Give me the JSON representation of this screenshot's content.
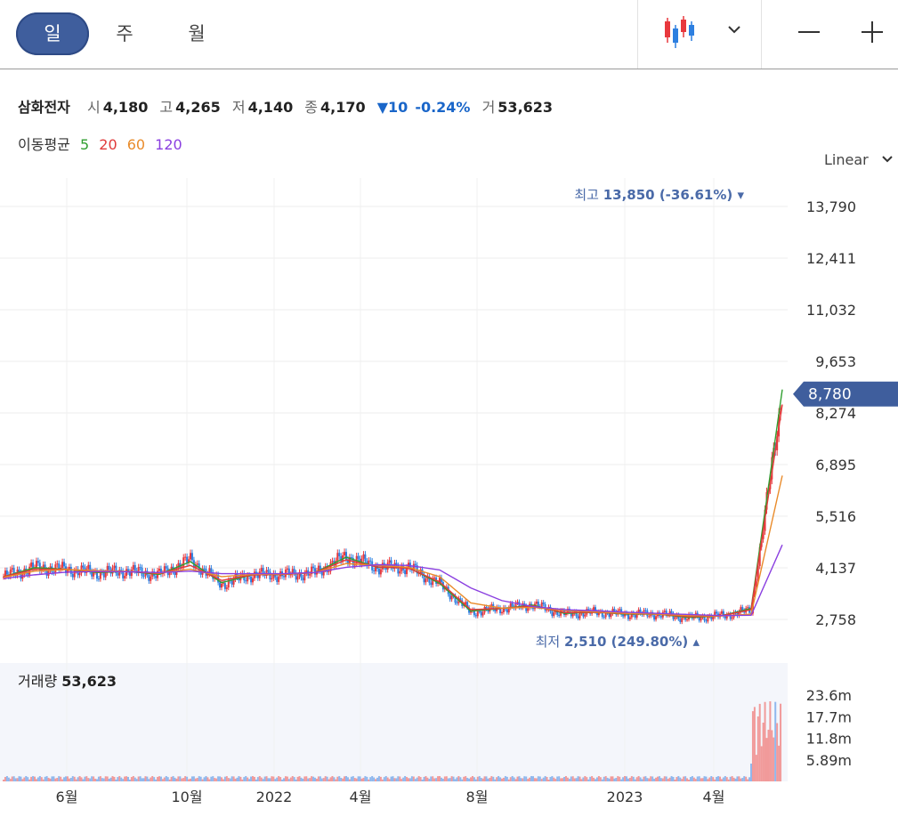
{
  "toolbar": {
    "period_tabs": [
      "일",
      "주",
      "월"
    ],
    "active_period": "일",
    "chart_type_icon": "candlestick-icon",
    "dropdown_icon": "chevron-down-icon",
    "zoom_out_icon": "minus-icon",
    "zoom_in_icon": "plus-icon"
  },
  "quote": {
    "name": "삼화전자",
    "open_label": "시",
    "open": "4,180",
    "high_label": "고",
    "high": "4,265",
    "low_label": "저",
    "low": "4,140",
    "close_label": "종",
    "close": "4,170",
    "change": "▼10",
    "change_pct": "-0.24%",
    "volume_label": "거",
    "volume": "53,623"
  },
  "moving_average": {
    "label": "이동평균",
    "periods": [
      {
        "label": "5",
        "color": "#2f9e2f"
      },
      {
        "label": "20",
        "color": "#e03a3a"
      },
      {
        "label": "60",
        "color": "#e98b2a"
      },
      {
        "label": "120",
        "color": "#8a3fe0"
      }
    ]
  },
  "scale": {
    "label": "Linear"
  },
  "colors": {
    "up": "#e8383d",
    "down": "#2d7fe0",
    "accent": "#3f5e9d",
    "label_text": "#4a6aa8"
  },
  "chart_data": {
    "type": "candlestick",
    "x": [
      "2021-04",
      "2021-05",
      "2021-06",
      "2021-07",
      "2021-08",
      "2021-09",
      "2021-10",
      "2021-11",
      "2021-12",
      "2022-01",
      "2022-02",
      "2022-03",
      "2022-04",
      "2022-05",
      "2022-06",
      "2022-07",
      "2022-08",
      "2022-09",
      "2022-10",
      "2022-11",
      "2022-12",
      "2023-01",
      "2023-02",
      "2023-03",
      "2023-04",
      "2023-05"
    ],
    "x_tick_labels": [
      "6월",
      "10월",
      "2022",
      "4월",
      "8월",
      "2023",
      "4월"
    ],
    "y_tick_labels": [
      "13,790",
      "12,411",
      "11,032",
      "9,653",
      "8,274",
      "6,895",
      "5,516",
      "4,137",
      "2,758"
    ],
    "ylim": [
      2200,
      14600
    ],
    "scale": "linear",
    "series": [
      {
        "name": "종가",
        "values": [
          3900,
          4150,
          4100,
          4000,
          4050,
          3950,
          4350,
          3700,
          3950,
          3950,
          4000,
          4450,
          4150,
          4150,
          3700,
          2950,
          3050,
          3150,
          2900,
          2950,
          2900,
          2900,
          2800,
          2850,
          3000,
          8780
        ]
      },
      {
        "name": "5",
        "values": [
          3900,
          4140,
          4100,
          4010,
          4040,
          3960,
          4300,
          3740,
          3950,
          3960,
          4010,
          4420,
          4150,
          4140,
          3720,
          2980,
          3050,
          3140,
          2920,
          2950,
          2900,
          2900,
          2810,
          2850,
          3050,
          8900
        ]
      },
      {
        "name": "20",
        "values": [
          3900,
          4100,
          4100,
          4030,
          4040,
          3980,
          4200,
          3800,
          3950,
          3960,
          4010,
          4350,
          4160,
          4130,
          3760,
          3020,
          3050,
          3120,
          2940,
          2950,
          2910,
          2900,
          2830,
          2850,
          3020,
          8500
        ]
      },
      {
        "name": "60",
        "values": [
          3880,
          4050,
          4090,
          4060,
          4040,
          4000,
          4100,
          3900,
          3960,
          3970,
          4010,
          4250,
          4200,
          4150,
          3900,
          3200,
          3060,
          3080,
          3000,
          2960,
          2920,
          2900,
          2860,
          2850,
          2900,
          6600
        ]
      },
      {
        "name": "120",
        "values": [
          3850,
          3950,
          4020,
          4040,
          4030,
          4010,
          4050,
          3980,
          3980,
          3980,
          4010,
          4150,
          4220,
          4200,
          4080,
          3600,
          3260,
          3100,
          3020,
          2990,
          2950,
          2920,
          2890,
          2860,
          2870,
          4750
        ]
      }
    ],
    "annotations": {
      "max_label": "최고",
      "max_value": "13,850 (-36.61%)",
      "min_label": "최저",
      "min_value": "2,510 (249.80%)",
      "current_price": "8,780"
    },
    "volume": {
      "label": "거래량",
      "value": "53,623",
      "y_tick_labels": [
        "23.6m",
        "17.7m",
        "11.8m",
        "5.89m"
      ],
      "ylim": [
        0,
        30000000
      ]
    },
    "legend": "top-left",
    "grid": true
  }
}
